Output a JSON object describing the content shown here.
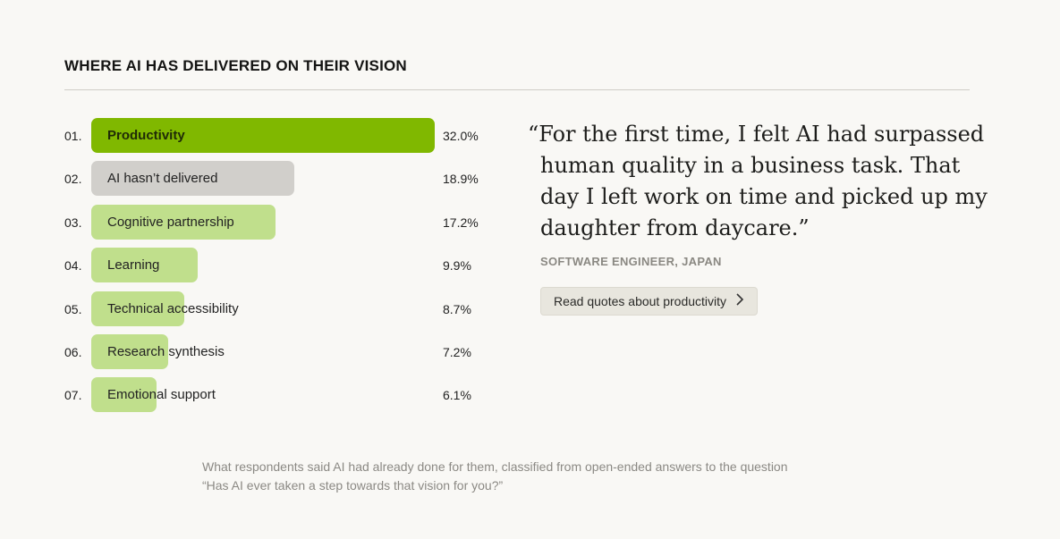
{
  "header": {
    "title": "WHERE AI HAS DELIVERED ON THEIR VISION"
  },
  "chart_data": {
    "type": "bar",
    "orientation": "horizontal",
    "categories": [
      "Productivity",
      "AI hasn’t delivered",
      "Cognitive partnership",
      "Learning",
      "Technical accessibility",
      "Research synthesis",
      "Emotional support"
    ],
    "ranks": [
      "01.",
      "02.",
      "03.",
      "04.",
      "05.",
      "06.",
      "07."
    ],
    "values": [
      32.0,
      18.9,
      17.2,
      9.9,
      8.7,
      7.2,
      6.1
    ],
    "value_labels": [
      "32.0%",
      "18.9%",
      "17.2%",
      "9.9%",
      "8.7%",
      "7.2%",
      "6.1%"
    ],
    "unit": "%",
    "colors": [
      "#80b800",
      "#d1cfcb",
      "#c0df8c",
      "#c0df8c",
      "#c0df8c",
      "#c0df8c",
      "#c0df8c"
    ],
    "xlim": [
      0,
      32.0
    ],
    "grid": false
  },
  "quote": {
    "text": "“For the first time, I felt AI had surpassed human quality in a business task. That day I left work on time and picked up my daughter from daycare.”",
    "attribution": "SOFTWARE ENGINEER, JAPAN",
    "button_label": "Read quotes about productivity",
    "button_icon": "chevron-right-icon"
  },
  "caption": "What respondents said AI had already done for them, classified from open-ended answers to the question “Has AI ever taken a step towards that vision for you?”"
}
